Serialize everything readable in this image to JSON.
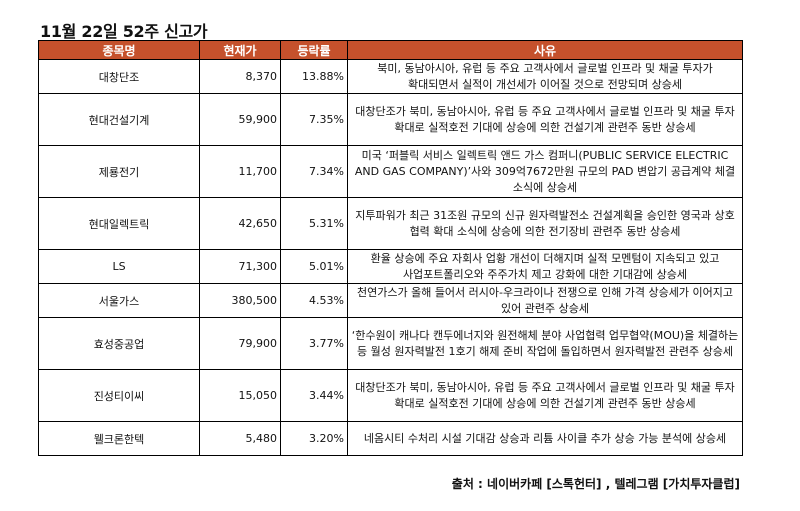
{
  "title": "11월 22일 52주 신고가",
  "headers": {
    "name": "종목명",
    "price": "현재가",
    "change": "등락률",
    "reason": "사유"
  },
  "rows": [
    {
      "name": "대창단조",
      "price": "8,370",
      "change": "13.88%",
      "reason": "북미, 동남아시아, 유럽 등 주요 고객사에서 글로벌 인프라 및 채굴 투자가 확대되면서 실적이 개선세가 이어질 것으로 전망되며 상승세"
    },
    {
      "name": "현대건설기계",
      "price": "59,900",
      "change": "7.35%",
      "reason": "대창단조가 북미, 동남아시아, 유럽 등 주요 고객사에서 글로벌 인프라 및 채굴 투자 확대로 실적호전 기대에 상승에 의한 건설기계 관련주 동반 상승세"
    },
    {
      "name": "제룡전기",
      "price": "11,700",
      "change": "7.34%",
      "reason": "미국 ‘퍼블릭 서비스 일렉트릭 앤드 가스 컴퍼니(PUBLIC SERVICE ELECTRIC AND GAS COMPANY)’사와 309억7672만원 규모의 PAD 변압기 공급계약 체결 소식에 상승세"
    },
    {
      "name": "현대일렉트릭",
      "price": "42,650",
      "change": "5.31%",
      "reason": "지투파워가 최근 31조원 규모의 신규 원자력발전소 건설계획을 승인한 영국과 상호 협력 확대 소식에 상승에 의한 전기장비 관련주 동반 상승세"
    },
    {
      "name": "LS",
      "price": "71,300",
      "change": "5.01%",
      "reason": "환율 상승에 주요 자회사 업황 개선이 더해지며 실적 모멘텀이 지속되고 있고 사업포트폴리오와 주주가치 제고 강화에 대한 기대감에 상승세"
    },
    {
      "name": "서울가스",
      "price": "380,500",
      "change": "4.53%",
      "reason": "천연가스가 올해 들어서 러시아-우크라이나 전쟁으로 인해 가격 상승세가 이어지고 있어 관련주 상승세"
    },
    {
      "name": "효성중공업",
      "price": "79,900",
      "change": "3.77%",
      "reason": "‘한수원이 캐나다 캔두에너지와 원전해체 분야 사업협력 업무협약(MOU)을 체결하는 등 월성 원자력발전 1호기 해제 준비 작업에 돌입하면서 원자력발전 관련주 상승세"
    },
    {
      "name": "진성티이씨",
      "price": "15,050",
      "change": "3.44%",
      "reason": "대창단조가 북미, 동남아시아, 유럽 등 주요 고객사에서 글로벌 인프라 및 채굴 투자 확대로 실적호전 기대에 상승에 의한 건설기계 관련주 동반 상승세"
    },
    {
      "name": "웰크론한텍",
      "price": "5,480",
      "change": "3.20%",
      "reason": "네옴시티 수처리 시설 기대감 상승과 리튬 사이클 추가 상승 가능 분석에 상승세"
    }
  ],
  "source": "출처 : 네이버카페 [스톡헌터] , 텔레그램 [가치투자클럽]",
  "colors": {
    "header_bg": "#c5512c",
    "header_text": "#ffffff",
    "border": "#000000"
  }
}
